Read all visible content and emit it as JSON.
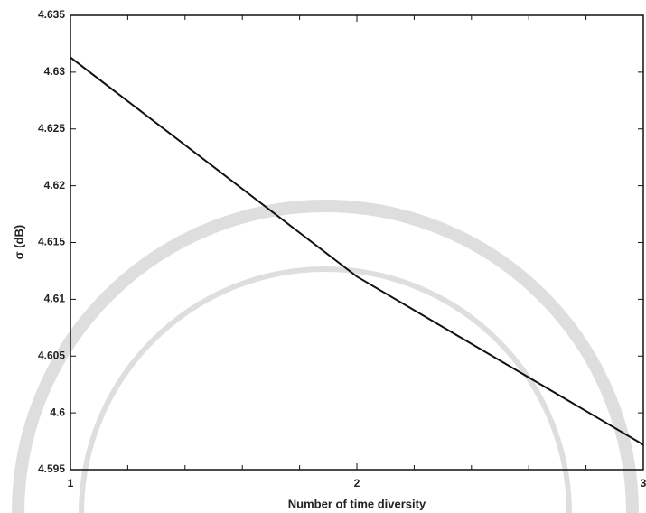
{
  "chart_data": {
    "type": "line",
    "xlabel": "Number of time diversity",
    "ylabel": "σ (dB)",
    "x": [
      1,
      2,
      3
    ],
    "series": [
      {
        "color": "#111111",
        "values": [
          4.6313,
          4.612,
          4.5972
        ]
      }
    ],
    "xlim": [
      1,
      3
    ],
    "xticks": [
      1,
      2,
      3
    ],
    "xminorticks": [
      1.2,
      1.4,
      1.6,
      1.8,
      2.2,
      2.4,
      2.6,
      2.8
    ],
    "ylim": [
      4.595,
      4.635
    ],
    "yticks": [
      4.595,
      4.6,
      4.605,
      4.61,
      4.615,
      4.62,
      4.625,
      4.63,
      4.635
    ]
  }
}
